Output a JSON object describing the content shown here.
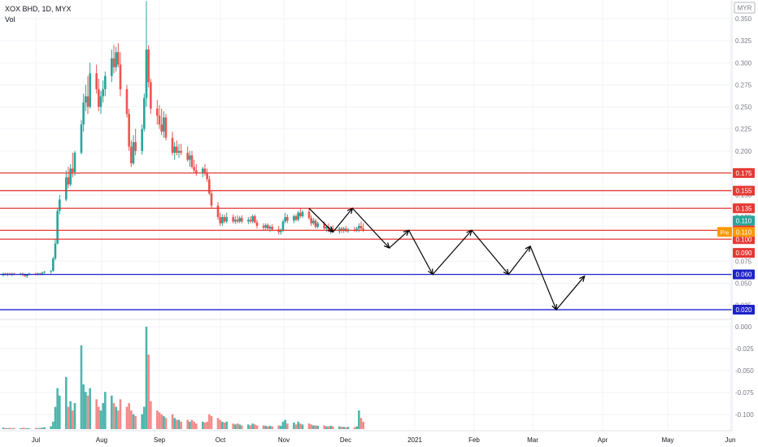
{
  "header": {
    "symbol_line": "XOX BHD, 1D, MYX",
    "volume_label": "Vol"
  },
  "currency": "MYR",
  "colors": {
    "up": "#26a69a",
    "down": "#ef5350",
    "up_vol": "#4db6ac",
    "down_vol": "#f48a8a",
    "red_line": "#e53935",
    "blue_line": "#1e22c8",
    "orange": "#ff9800",
    "grid": "#f0f3fa",
    "text": "#131722"
  },
  "chart_data": {
    "type": "candlestick",
    "x_tick_labels": [
      "Jul",
      "Aug",
      "Sep",
      "Oct",
      "Nov",
      "Dec",
      "2021",
      "Feb",
      "Mar",
      "Apr",
      "May",
      "Jun"
    ],
    "price_axis_ticks": [
      "0.350",
      "0.325",
      "0.300",
      "0.275",
      "0.250",
      "0.225",
      "0.200",
      "0.175",
      "0.150",
      "0.125",
      "0.100",
      "0.075",
      "0.050",
      "0.025"
    ],
    "volume_axis_ticks": [
      "0.000",
      "-0.025",
      "-0.050",
      "-0.075",
      "-0.100"
    ],
    "horizontal_levels": [
      {
        "label": "0.175",
        "value": 0.175,
        "color": "red"
      },
      {
        "label": "0.155",
        "value": 0.155,
        "color": "red"
      },
      {
        "label": "0.135",
        "value": 0.135,
        "color": "red"
      },
      {
        "label": "0.110",
        "value": 0.11,
        "color": "red"
      },
      {
        "label": "0.100",
        "value": 0.1,
        "color": "red"
      },
      {
        "label": "0.060",
        "value": 0.06,
        "color": "blue"
      },
      {
        "label": "0.020",
        "value": 0.02,
        "color": "blue"
      }
    ],
    "last_price_label": "0.110",
    "pre_market": {
      "tag": "Pre",
      "label": "0.110"
    },
    "extra_price_label": "0.090",
    "projection_path": [
      [
        "2020-11-16",
        0.135
      ],
      [
        "2020-11-27",
        0.108
      ],
      [
        "2020-12-06",
        0.135
      ],
      [
        "2020-12-23",
        0.09
      ],
      [
        "2021-01-01",
        0.11
      ],
      [
        "2021-01-12",
        0.06
      ],
      [
        "2021-01-30",
        0.11
      ],
      [
        "2021-02-16",
        0.06
      ],
      [
        "2021-02-26",
        0.092
      ],
      [
        "2021-03-10",
        0.02
      ],
      [
        "2021-03-23",
        0.058
      ]
    ],
    "candles": [
      [
        "2020-06-28",
        0.059,
        0.062,
        0.058,
        0.061,
        0.8
      ],
      [
        "2020-06-29",
        0.061,
        0.062,
        0.059,
        0.06,
        0.6
      ],
      [
        "2020-06-30",
        0.06,
        0.062,
        0.058,
        0.061,
        0.5
      ],
      [
        "2020-07-01",
        0.061,
        0.062,
        0.059,
        0.06,
        0.7
      ],
      [
        "2020-07-02",
        0.06,
        0.062,
        0.058,
        0.061,
        0.4
      ],
      [
        "2020-07-03",
        0.061,
        0.062,
        0.059,
        0.06,
        0.6
      ],
      [
        "2020-07-06",
        0.06,
        0.062,
        0.059,
        0.061,
        0.5
      ],
      [
        "2020-07-07",
        0.061,
        0.062,
        0.058,
        0.06,
        0.7
      ],
      [
        "2020-07-08",
        0.06,
        0.061,
        0.057,
        0.058,
        0.6
      ],
      [
        "2020-07-09",
        0.058,
        0.061,
        0.056,
        0.06,
        0.5
      ],
      [
        "2020-07-10",
        0.06,
        0.062,
        0.059,
        0.061,
        0.4
      ],
      [
        "2020-07-13",
        0.061,
        0.062,
        0.059,
        0.06,
        0.6
      ],
      [
        "2020-07-14",
        0.06,
        0.062,
        0.059,
        0.061,
        0.5
      ],
      [
        "2020-07-15",
        0.061,
        0.062,
        0.059,
        0.06,
        0.7
      ],
      [
        "2020-07-16",
        0.06,
        0.063,
        0.059,
        0.062,
        0.8
      ],
      [
        "2020-07-17",
        0.062,
        0.064,
        0.061,
        0.063,
        1.0
      ],
      [
        "2020-07-20",
        0.063,
        0.065,
        0.061,
        0.064,
        1.5
      ],
      [
        "2020-07-21",
        0.064,
        0.08,
        0.063,
        0.078,
        4.0
      ],
      [
        "2020-07-22",
        0.078,
        0.1,
        0.076,
        0.095,
        12.0
      ],
      [
        "2020-07-23",
        0.095,
        0.135,
        0.094,
        0.132,
        22.0
      ],
      [
        "2020-07-24",
        0.132,
        0.15,
        0.128,
        0.145,
        18.0
      ],
      [
        "2020-07-27",
        0.145,
        0.178,
        0.143,
        0.17,
        28.0
      ],
      [
        "2020-07-28",
        0.17,
        0.182,
        0.158,
        0.162,
        12.0
      ],
      [
        "2020-07-29",
        0.162,
        0.185,
        0.16,
        0.18,
        15.0
      ],
      [
        "2020-07-30",
        0.18,
        0.198,
        0.17,
        0.176,
        10.0
      ],
      [
        "2020-07-31",
        0.176,
        0.2,
        0.172,
        0.198,
        14.0
      ],
      [
        "2020-08-03",
        0.198,
        0.235,
        0.196,
        0.23,
        45.0
      ],
      [
        "2020-08-04",
        0.23,
        0.265,
        0.222,
        0.255,
        24.0
      ],
      [
        "2020-08-05",
        0.255,
        0.275,
        0.245,
        0.262,
        20.0
      ],
      [
        "2020-08-06",
        0.262,
        0.285,
        0.242,
        0.25,
        18.0
      ],
      [
        "2020-08-07",
        0.25,
        0.3,
        0.248,
        0.288,
        22.0
      ],
      [
        "2020-08-10",
        0.288,
        0.298,
        0.265,
        0.27,
        16.0
      ],
      [
        "2020-08-11",
        0.27,
        0.282,
        0.245,
        0.25,
        12.0
      ],
      [
        "2020-08-12",
        0.25,
        0.268,
        0.242,
        0.262,
        10.0
      ],
      [
        "2020-08-13",
        0.262,
        0.28,
        0.255,
        0.27,
        14.0
      ],
      [
        "2020-08-14",
        0.27,
        0.29,
        0.262,
        0.285,
        20.0
      ],
      [
        "2020-08-17",
        0.285,
        0.315,
        0.278,
        0.305,
        18.0
      ],
      [
        "2020-08-18",
        0.305,
        0.32,
        0.288,
        0.295,
        14.0
      ],
      [
        "2020-08-19",
        0.295,
        0.318,
        0.29,
        0.312,
        12.0
      ],
      [
        "2020-08-20",
        0.312,
        0.322,
        0.295,
        0.298,
        10.0
      ],
      [
        "2020-08-21",
        0.298,
        0.312,
        0.262,
        0.27,
        16.0
      ],
      [
        "2020-08-24",
        0.27,
        0.275,
        0.238,
        0.242,
        12.0
      ],
      [
        "2020-08-25",
        0.242,
        0.248,
        0.2,
        0.205,
        14.0
      ],
      [
        "2020-08-26",
        0.205,
        0.212,
        0.182,
        0.186,
        10.0
      ],
      [
        "2020-08-27",
        0.186,
        0.218,
        0.184,
        0.21,
        8.0
      ],
      [
        "2020-08-28",
        0.21,
        0.225,
        0.195,
        0.2,
        7.0
      ],
      [
        "2020-08-31",
        0.2,
        0.23,
        0.196,
        0.225,
        8.0
      ],
      [
        "2020-09-01",
        0.225,
        0.265,
        0.222,
        0.26,
        12.0
      ],
      [
        "2020-09-02",
        0.26,
        0.37,
        0.25,
        0.315,
        55.0
      ],
      [
        "2020-09-03",
        0.315,
        0.32,
        0.272,
        0.278,
        40.0
      ],
      [
        "2020-09-04",
        0.278,
        0.282,
        0.242,
        0.248,
        15.0
      ],
      [
        "2020-09-07",
        0.248,
        0.258,
        0.23,
        0.24,
        10.0
      ],
      [
        "2020-09-08",
        0.24,
        0.252,
        0.225,
        0.23,
        9.0
      ],
      [
        "2020-09-09",
        0.23,
        0.248,
        0.218,
        0.222,
        8.0
      ],
      [
        "2020-09-10",
        0.222,
        0.245,
        0.215,
        0.238,
        7.0
      ],
      [
        "2020-09-11",
        0.238,
        0.242,
        0.212,
        0.215,
        6.0
      ],
      [
        "2020-09-14",
        0.215,
        0.222,
        0.195,
        0.198,
        8.0
      ],
      [
        "2020-09-15",
        0.198,
        0.21,
        0.19,
        0.205,
        6.0
      ],
      [
        "2020-09-16",
        0.205,
        0.212,
        0.195,
        0.198,
        5.0
      ],
      [
        "2020-09-17",
        0.198,
        0.208,
        0.192,
        0.2,
        5.0
      ],
      [
        "2020-09-18",
        0.2,
        0.208,
        0.195,
        0.198,
        4.0
      ],
      [
        "2020-09-21",
        0.198,
        0.205,
        0.188,
        0.19,
        5.0
      ],
      [
        "2020-09-22",
        0.19,
        0.2,
        0.182,
        0.195,
        4.0
      ],
      [
        "2020-09-23",
        0.195,
        0.2,
        0.18,
        0.182,
        5.0
      ],
      [
        "2020-09-24",
        0.182,
        0.19,
        0.175,
        0.178,
        4.0
      ],
      [
        "2020-09-25",
        0.178,
        0.185,
        0.172,
        0.175,
        3.0
      ],
      [
        "2020-09-28",
        0.175,
        0.182,
        0.17,
        0.18,
        4.0
      ],
      [
        "2020-09-29",
        0.18,
        0.185,
        0.172,
        0.175,
        3.5
      ],
      [
        "2020-09-30",
        0.175,
        0.18,
        0.165,
        0.168,
        4.0
      ],
      [
        "2020-10-01",
        0.168,
        0.172,
        0.15,
        0.152,
        8.0
      ],
      [
        "2020-10-02",
        0.152,
        0.155,
        0.135,
        0.138,
        7.0
      ],
      [
        "2020-10-05",
        0.138,
        0.142,
        0.122,
        0.125,
        6.0
      ],
      [
        "2020-10-06",
        0.125,
        0.13,
        0.115,
        0.118,
        5.0
      ],
      [
        "2020-10-07",
        0.118,
        0.128,
        0.115,
        0.125,
        4.0
      ],
      [
        "2020-10-08",
        0.125,
        0.128,
        0.118,
        0.12,
        3.5
      ],
      [
        "2020-10-09",
        0.12,
        0.13,
        0.118,
        0.125,
        4.0
      ],
      [
        "2020-10-12",
        0.125,
        0.128,
        0.118,
        0.12,
        3.0
      ],
      [
        "2020-10-13",
        0.12,
        0.126,
        0.117,
        0.122,
        2.5
      ],
      [
        "2020-10-14",
        0.122,
        0.127,
        0.118,
        0.12,
        3.0
      ],
      [
        "2020-10-15",
        0.12,
        0.126,
        0.118,
        0.124,
        2.5
      ],
      [
        "2020-10-16",
        0.124,
        0.127,
        0.118,
        0.12,
        2.0
      ],
      [
        "2020-10-19",
        0.12,
        0.125,
        0.117,
        0.122,
        2.5
      ],
      [
        "2020-10-20",
        0.122,
        0.126,
        0.118,
        0.12,
        2.0
      ],
      [
        "2020-10-21",
        0.12,
        0.128,
        0.118,
        0.126,
        3.0
      ],
      [
        "2020-10-22",
        0.126,
        0.128,
        0.118,
        0.119,
        2.5
      ],
      [
        "2020-10-23",
        0.119,
        0.122,
        0.112,
        0.115,
        2.0
      ],
      [
        "2020-10-26",
        0.115,
        0.118,
        0.11,
        0.113,
        2.0
      ],
      [
        "2020-10-27",
        0.113,
        0.118,
        0.11,
        0.116,
        1.8
      ],
      [
        "2020-10-28",
        0.116,
        0.118,
        0.11,
        0.112,
        1.5
      ],
      [
        "2020-10-29",
        0.112,
        0.116,
        0.108,
        0.114,
        1.8
      ],
      [
        "2020-10-30",
        0.114,
        0.117,
        0.11,
        0.111,
        1.5
      ],
      [
        "2020-11-02",
        0.111,
        0.115,
        0.105,
        0.108,
        2.0
      ],
      [
        "2020-11-03",
        0.108,
        0.112,
        0.105,
        0.11,
        1.8
      ],
      [
        "2020-11-04",
        0.11,
        0.122,
        0.108,
        0.12,
        4.0
      ],
      [
        "2020-11-05",
        0.12,
        0.13,
        0.118,
        0.125,
        5.0
      ],
      [
        "2020-11-06",
        0.125,
        0.128,
        0.118,
        0.121,
        3.0
      ],
      [
        "2020-11-09",
        0.121,
        0.128,
        0.118,
        0.126,
        3.5
      ],
      [
        "2020-11-10",
        0.126,
        0.128,
        0.12,
        0.122,
        2.5
      ],
      [
        "2020-11-11",
        0.122,
        0.132,
        0.12,
        0.13,
        4.0
      ],
      [
        "2020-11-12",
        0.13,
        0.135,
        0.124,
        0.126,
        3.0
      ],
      [
        "2020-11-13",
        0.126,
        0.133,
        0.124,
        0.131,
        2.5
      ],
      [
        "2020-11-16",
        0.131,
        0.135,
        0.122,
        0.124,
        3.0
      ],
      [
        "2020-11-17",
        0.124,
        0.127,
        0.115,
        0.118,
        2.5
      ],
      [
        "2020-11-18",
        0.118,
        0.124,
        0.116,
        0.121,
        2.0
      ],
      [
        "2020-11-19",
        0.121,
        0.123,
        0.112,
        0.114,
        2.0
      ],
      [
        "2020-11-20",
        0.114,
        0.12,
        0.112,
        0.118,
        1.8
      ],
      [
        "2020-11-23",
        0.118,
        0.12,
        0.11,
        0.112,
        2.0
      ],
      [
        "2020-11-24",
        0.112,
        0.116,
        0.108,
        0.114,
        1.5
      ],
      [
        "2020-11-25",
        0.114,
        0.118,
        0.108,
        0.11,
        1.5
      ],
      [
        "2020-11-26",
        0.11,
        0.115,
        0.106,
        0.112,
        1.8
      ],
      [
        "2020-11-27",
        0.112,
        0.116,
        0.108,
        0.109,
        1.5
      ],
      [
        "2020-11-30",
        0.109,
        0.114,
        0.106,
        0.112,
        1.5
      ],
      [
        "2020-12-01",
        0.112,
        0.114,
        0.107,
        0.11,
        1.2
      ],
      [
        "2020-12-02",
        0.11,
        0.114,
        0.107,
        0.112,
        1.2
      ],
      [
        "2020-12-03",
        0.112,
        0.115,
        0.108,
        0.109,
        1.0
      ],
      [
        "2020-12-04",
        0.109,
        0.113,
        0.107,
        0.111,
        1.2
      ],
      [
        "2020-12-07",
        0.111,
        0.114,
        0.108,
        0.11,
        1.0
      ],
      [
        "2020-12-08",
        0.11,
        0.114,
        0.108,
        0.112,
        1.5
      ],
      [
        "2020-12-09",
        0.112,
        0.118,
        0.108,
        0.115,
        10.0
      ],
      [
        "2020-12-10",
        0.115,
        0.12,
        0.11,
        0.112,
        6.0
      ],
      [
        "2020-12-11",
        0.112,
        0.118,
        0.108,
        0.11,
        4.0
      ]
    ]
  }
}
